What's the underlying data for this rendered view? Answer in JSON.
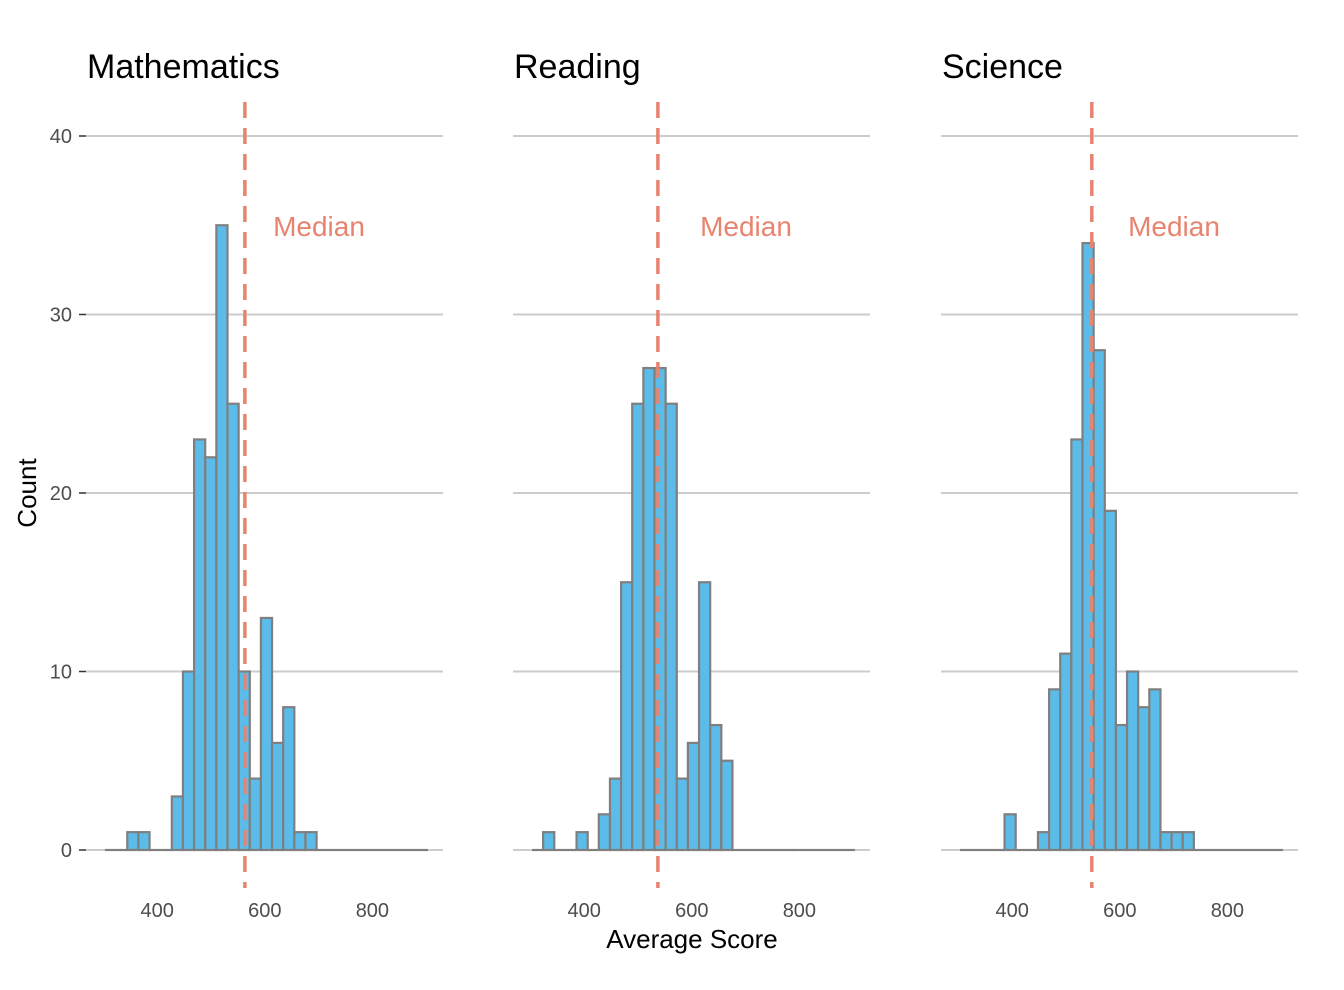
{
  "chart_data": {
    "type": "histogram",
    "layout": "facets",
    "ylabel": "Count",
    "xlabel": "Average Score",
    "ylim": [
      0,
      42
    ],
    "y_ticks": [
      0,
      10,
      20,
      30,
      40
    ],
    "x_ticks": [
      400,
      600,
      800
    ],
    "bin_width": 20.7,
    "annotation_label": "Median",
    "colors": {
      "bar_fill": "#5bbcea",
      "bar_stroke": "#7f7f7f",
      "median": "#e8836f",
      "grid": "#cccccc",
      "tick_text": "#4d4d4d"
    },
    "panels": [
      {
        "title": "Mathematics",
        "x_range": [
          303,
          897
        ],
        "median": 563,
        "bin_start": 303,
        "counts": [
          0,
          0,
          1,
          1,
          0,
          0,
          3,
          10,
          23,
          22,
          35,
          25,
          10,
          4,
          13,
          6,
          8,
          1,
          1,
          0,
          0,
          0,
          0,
          0,
          0,
          0,
          0,
          0,
          0
        ]
      },
      {
        "title": "Reading",
        "x_range": [
          303,
          897
        ],
        "median": 537,
        "bin_start": 303,
        "counts": [
          0,
          1,
          0,
          0,
          1,
          0,
          2,
          4,
          15,
          25,
          27,
          27,
          25,
          4,
          6,
          15,
          7,
          5,
          0,
          0,
          0,
          0,
          0,
          0,
          0,
          0,
          0,
          0,
          0
        ]
      },
      {
        "title": "Science",
        "x_range": [
          303,
          897
        ],
        "median": 548,
        "bin_start": 303,
        "counts": [
          0,
          0,
          0,
          0,
          2,
          0,
          0,
          1,
          9,
          11,
          23,
          34,
          28,
          19,
          7,
          10,
          8,
          9,
          1,
          1,
          1,
          0,
          0,
          0,
          0,
          0,
          0,
          0,
          0
        ]
      }
    ]
  }
}
